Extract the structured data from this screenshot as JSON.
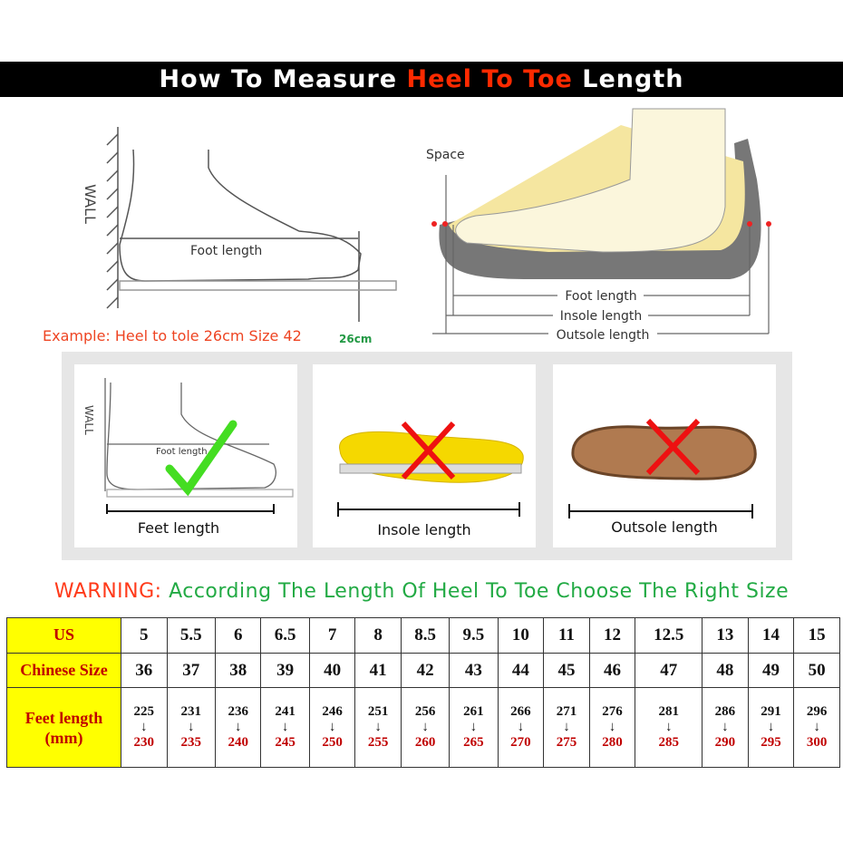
{
  "banner": {
    "prefix": "How To Measure ",
    "highlight": "Heel To Toe",
    "suffix": " Length"
  },
  "diagram_left": {
    "wall": "WALL",
    "foot_length": "Foot length",
    "example": "Example: Heel to tole 26cm Size 42",
    "mark": "26cm"
  },
  "diagram_right": {
    "space": "Space",
    "foot_length": "Foot length",
    "insole_length": "Insole length",
    "outsole_length": "Outsole length"
  },
  "methods": [
    {
      "label": "Feet length",
      "wall": "WALL",
      "foot_length": "Foot length",
      "mark": "check-icon",
      "color": "#44dd22"
    },
    {
      "label": "Insole length",
      "mark": "cross-icon",
      "color": "#ee1111"
    },
    {
      "label": "Outsole length",
      "mark": "cross-icon",
      "color": "#ee1111"
    }
  ],
  "warning": {
    "label": "WARNING:",
    "text": "According The Length Of Heel To Toe Choose The Right Size"
  },
  "table": {
    "headers": [
      "US",
      "Chinese Size",
      "Feet length\n(mm)"
    ],
    "us": [
      "5",
      "5.5",
      "6",
      "6.5",
      "7",
      "8",
      "8.5",
      "9.5",
      "10",
      "11",
      "12",
      "12.5",
      "13",
      "14",
      "15"
    ],
    "cn": [
      "36",
      "37",
      "38",
      "39",
      "40",
      "41",
      "42",
      "43",
      "44",
      "45",
      "46",
      "47",
      "48",
      "49",
      "50"
    ],
    "feet_from": [
      "225",
      "231",
      "236",
      "241",
      "246",
      "251",
      "256",
      "261",
      "266",
      "271",
      "276",
      "281",
      "286",
      "291",
      "296"
    ],
    "feet_to": [
      "230",
      "235",
      "240",
      "245",
      "250",
      "255",
      "260",
      "265",
      "270",
      "275",
      "280",
      "285",
      "290",
      "295",
      "300"
    ]
  }
}
